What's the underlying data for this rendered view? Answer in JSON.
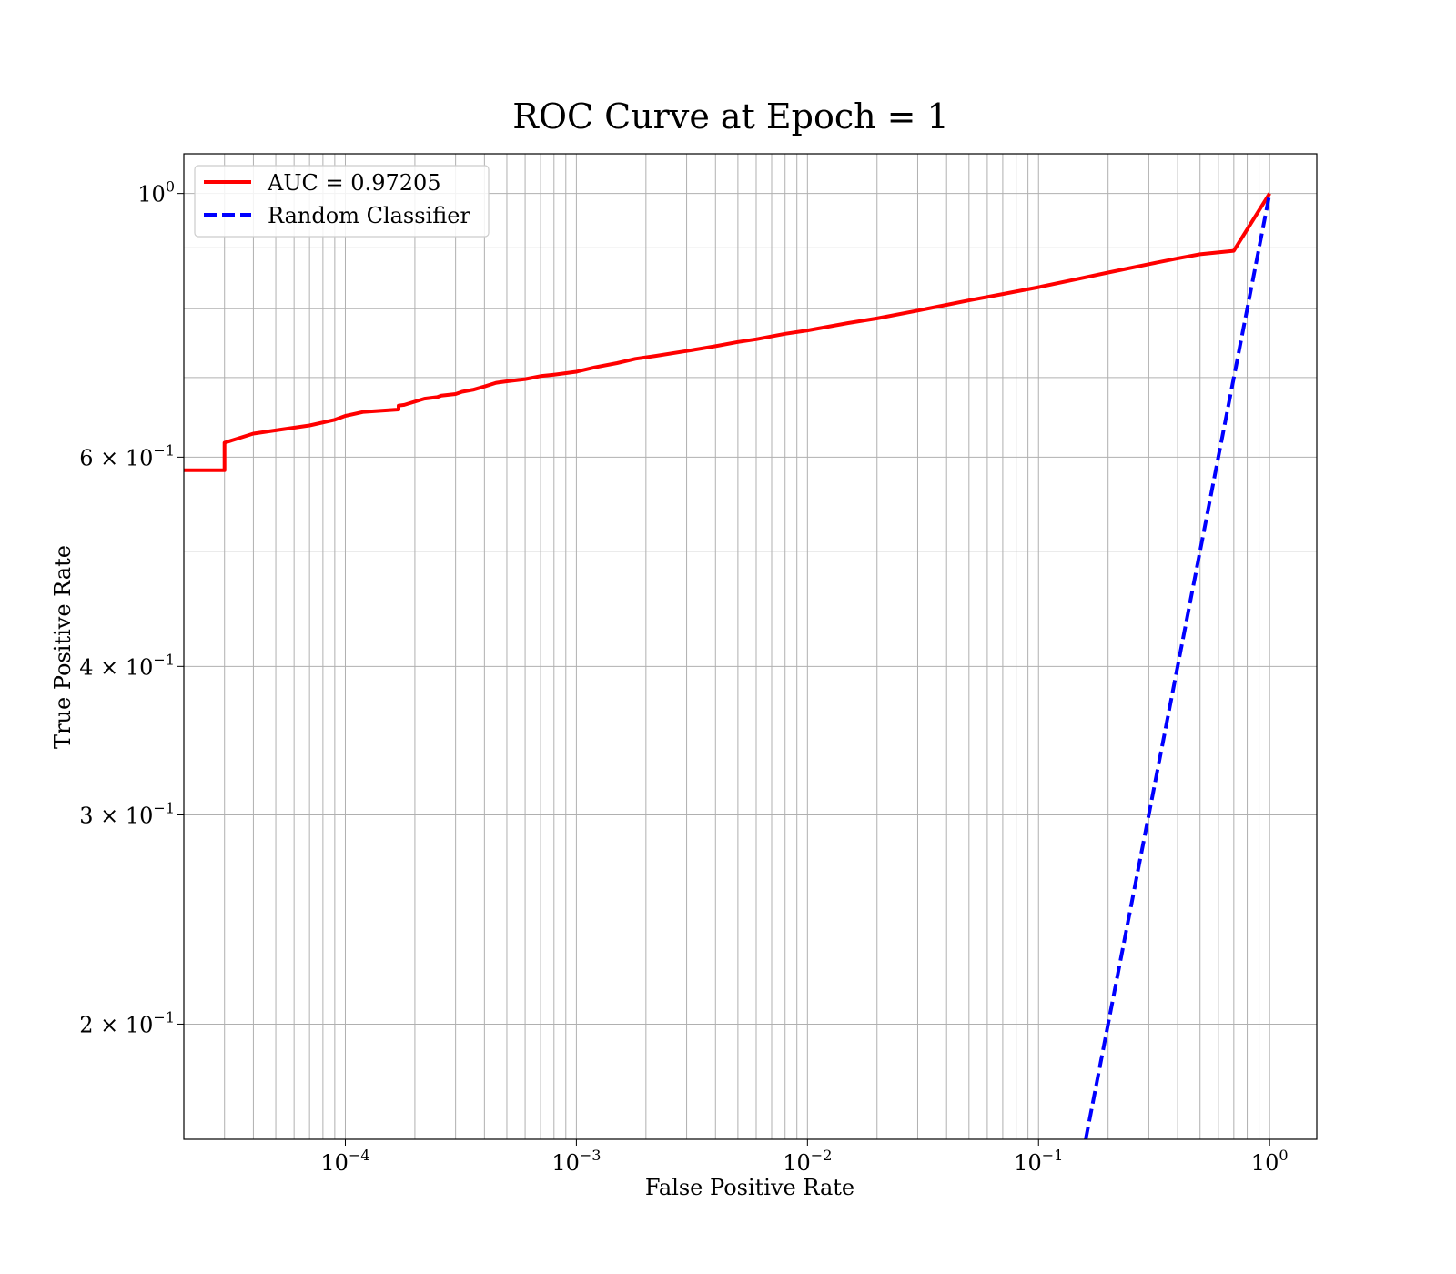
{
  "chart_data": {
    "type": "line",
    "title": "ROC Curve at Epoch = 1",
    "xlabel": "False Positive Rate",
    "ylabel": "True Positive Rate",
    "xscale": "log",
    "yscale": "log",
    "xlim": [
      2e-05,
      1.6
    ],
    "ylim": [
      0.16,
      1.08
    ],
    "grid": true,
    "grid_minor": true,
    "legend_position": "top-left",
    "x_ticks": [
      {
        "value": 0.0001,
        "base": "10",
        "exp": "−4"
      },
      {
        "value": 0.001,
        "base": "10",
        "exp": "−3"
      },
      {
        "value": 0.01,
        "base": "10",
        "exp": "−2"
      },
      {
        "value": 0.1,
        "base": "10",
        "exp": "−1"
      },
      {
        "value": 1,
        "base": "10",
        "exp": "0"
      }
    ],
    "y_ticks": [
      {
        "value": 1,
        "base": "10",
        "exp": "0"
      },
      {
        "value": 0.6,
        "base": "6 × 10",
        "exp": "−1"
      },
      {
        "value": 0.4,
        "base": "4 × 10",
        "exp": "−1"
      },
      {
        "value": 0.3,
        "base": "3 × 10",
        "exp": "−1"
      },
      {
        "value": 0.2,
        "base": "2 × 10",
        "exp": "−1"
      }
    ],
    "series": [
      {
        "name": "AUC = 0.97205",
        "color": "#ff0000",
        "style": "solid",
        "x": [
          2e-05,
          3e-05,
          3e-05,
          4e-05,
          5e-05,
          7e-05,
          9e-05,
          0.0001,
          0.00012,
          0.00017,
          0.00017,
          0.00018,
          0.00022,
          0.00025,
          0.00026,
          0.0003,
          0.00032,
          0.00036,
          0.0004,
          0.00045,
          0.0005,
          0.0006,
          0.0007,
          0.0008,
          0.001,
          0.0012,
          0.0015,
          0.0018,
          0.0022,
          0.003,
          0.004,
          0.005,
          0.006,
          0.008,
          0.01,
          0.015,
          0.02,
          0.03,
          0.04,
          0.05,
          0.07,
          0.1,
          0.15,
          0.2,
          0.3,
          0.4,
          0.5,
          0.7,
          1.0
        ],
        "y": [
          0.585,
          0.585,
          0.617,
          0.628,
          0.632,
          0.638,
          0.645,
          0.65,
          0.655,
          0.658,
          0.663,
          0.664,
          0.672,
          0.674,
          0.676,
          0.678,
          0.681,
          0.684,
          0.688,
          0.693,
          0.695,
          0.698,
          0.702,
          0.704,
          0.708,
          0.714,
          0.72,
          0.726,
          0.73,
          0.737,
          0.744,
          0.75,
          0.754,
          0.762,
          0.767,
          0.778,
          0.785,
          0.797,
          0.806,
          0.813,
          0.823,
          0.834,
          0.848,
          0.858,
          0.872,
          0.882,
          0.889,
          0.895,
          1.0
        ],
        "note_end": "curve reaches (1, 1)"
      },
      {
        "name": "Random Classifier",
        "color": "#0000ff",
        "style": "dashed",
        "x": [
          0.16,
          0.2,
          0.3,
          0.4,
          0.5,
          0.6,
          0.8,
          1.0
        ],
        "y": [
          0.16,
          0.2,
          0.3,
          0.4,
          0.5,
          0.6,
          0.8,
          1.0
        ]
      }
    ]
  }
}
